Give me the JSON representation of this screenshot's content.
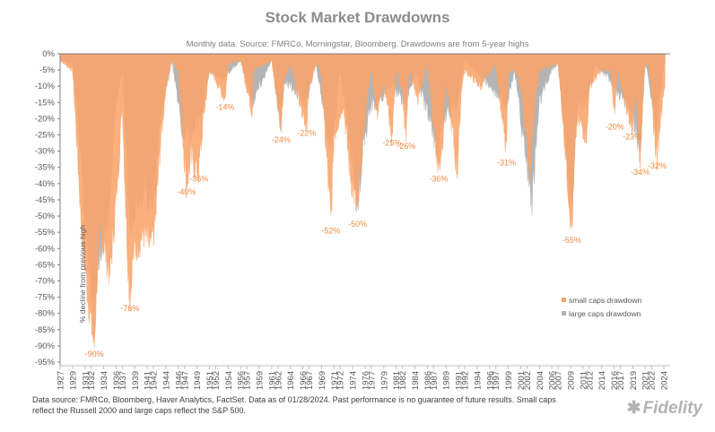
{
  "chart_data": {
    "type": "area",
    "title": "Stock Market Drawdowns",
    "subtitle": "Monthly data.  Source: FMRCo, Morningstar, Bloomberg.  Drawdowns are from 5-year highs",
    "ylabel": "% decline from previous high",
    "ylim": [
      -95,
      0
    ],
    "yticks": [
      "0%",
      "-5%",
      "-10%",
      "-15%",
      "-20%",
      "-25%",
      "-30%",
      "-35%",
      "-40%",
      "-45%",
      "-50%",
      "-55%",
      "-60%",
      "-65%",
      "-70%",
      "-75%",
      "-80%",
      "-85%",
      "-90%",
      "-95%"
    ],
    "xlim": [
      1927,
      2025
    ],
    "xticks": [
      "1927",
      "1929",
      "1931",
      "1932",
      "1934",
      "1936",
      "1937",
      "1939",
      "1941",
      "1942",
      "1944",
      "1946",
      "1947",
      "1949",
      "1951",
      "1952",
      "1954",
      "1956",
      "1957",
      "1959",
      "1961",
      "1962",
      "1964",
      "1966",
      "1967",
      "1969",
      "1971",
      "1972",
      "1974",
      "1976",
      "1977",
      "1979",
      "1981",
      "1982",
      "1984",
      "1986",
      "1987",
      "1989",
      "1991",
      "1992",
      "1994",
      "1996",
      "1997",
      "1999",
      "2001",
      "2002",
      "2004",
      "2006",
      "2007",
      "2009",
      "2011",
      "2012",
      "2014",
      "2016",
      "2017",
      "2019",
      "2021",
      "2022",
      "2024"
    ],
    "legend": {
      "position": "right",
      "entries": [
        "small caps drawdown",
        "large caps drawdown"
      ]
    },
    "series": [
      {
        "name": "small caps drawdown",
        "color": "#f9a46a",
        "points": [
          [
            1927,
            -2
          ],
          [
            1929,
            -5
          ],
          [
            1929.8,
            -30
          ],
          [
            1930.5,
            -55
          ],
          [
            1931.5,
            -75
          ],
          [
            1932.3,
            -88
          ],
          [
            1932.5,
            -90
          ],
          [
            1932.9,
            -70
          ],
          [
            1933.5,
            -55
          ],
          [
            1934.2,
            -60
          ],
          [
            1935,
            -68
          ],
          [
            1936,
            -45
          ],
          [
            1937,
            -15
          ],
          [
            1937.7,
            -55
          ],
          [
            1938.2,
            -76
          ],
          [
            1938.7,
            -62
          ],
          [
            1939.5,
            -58
          ],
          [
            1940.5,
            -55
          ],
          [
            1941.5,
            -60
          ],
          [
            1942.3,
            -52
          ],
          [
            1943,
            -30
          ],
          [
            1944,
            -10
          ],
          [
            1945,
            -2
          ],
          [
            1946,
            -5
          ],
          [
            1946.7,
            -25
          ],
          [
            1947.3,
            -40
          ],
          [
            1948,
            -32
          ],
          [
            1949.3,
            -36
          ],
          [
            1950,
            -20
          ],
          [
            1951,
            -5
          ],
          [
            1952,
            -8
          ],
          [
            1953.5,
            -14
          ],
          [
            1954,
            -3
          ],
          [
            1956,
            -2
          ],
          [
            1957.9,
            -18
          ],
          [
            1958,
            -5
          ],
          [
            1961,
            -2
          ],
          [
            1962.5,
            -24
          ],
          [
            1963,
            -8
          ],
          [
            1964,
            -3
          ],
          [
            1966.6,
            -22
          ],
          [
            1967,
            -10
          ],
          [
            1968.5,
            -2
          ],
          [
            1969,
            -8
          ],
          [
            1970.5,
            -52
          ],
          [
            1971,
            -25
          ],
          [
            1972.5,
            -15
          ],
          [
            1973.5,
            -35
          ],
          [
            1974.8,
            -50
          ],
          [
            1975.5,
            -30
          ],
          [
            1976.5,
            -10
          ],
          [
            1977,
            -5
          ],
          [
            1978,
            -18
          ],
          [
            1979,
            -8
          ],
          [
            1980.3,
            -25
          ],
          [
            1981,
            -5
          ],
          [
            1982,
            -12
          ],
          [
            1982.6,
            -26
          ],
          [
            1983,
            -5
          ],
          [
            1984.5,
            -14
          ],
          [
            1986,
            -3
          ],
          [
            1987.8,
            -36
          ],
          [
            1988.5,
            -25
          ],
          [
            1989,
            -8
          ],
          [
            1990.8,
            -36
          ],
          [
            1991.5,
            -10
          ],
          [
            1992,
            -5
          ],
          [
            1994.5,
            -10
          ],
          [
            1997,
            -3
          ],
          [
            1998.7,
            -31
          ],
          [
            1999,
            -5
          ],
          [
            2000,
            -5
          ],
          [
            2001,
            -10
          ],
          [
            2002.5,
            -35
          ],
          [
            2003,
            -20
          ],
          [
            2004,
            -5
          ],
          [
            2007,
            -3
          ],
          [
            2008,
            -25
          ],
          [
            2009.2,
            -55
          ],
          [
            2010,
            -20
          ],
          [
            2011.7,
            -25
          ],
          [
            2012,
            -10
          ],
          [
            2014,
            -5
          ],
          [
            2015.5,
            -5
          ],
          [
            2016.1,
            -20
          ],
          [
            2016.5,
            -5
          ],
          [
            2018.9,
            -23
          ],
          [
            2019.5,
            -10
          ],
          [
            2020.2,
            -34
          ],
          [
            2020.8,
            -5
          ],
          [
            2021.5,
            -2
          ],
          [
            2022.5,
            -25
          ],
          [
            2022.9,
            -32
          ],
          [
            2023.5,
            -18
          ],
          [
            2024,
            -10
          ]
        ]
      },
      {
        "name": "large caps drawdown",
        "color": "#b4b4b4",
        "points": [
          [
            1927,
            -2
          ],
          [
            1929,
            -3
          ],
          [
            1929.9,
            -20
          ],
          [
            1930.5,
            -40
          ],
          [
            1931.5,
            -60
          ],
          [
            1932.4,
            -85
          ],
          [
            1933,
            -62
          ],
          [
            1934,
            -60
          ],
          [
            1935,
            -45
          ],
          [
            1936,
            -15
          ],
          [
            1937,
            -5
          ],
          [
            1938.2,
            -55
          ],
          [
            1939,
            -45
          ],
          [
            1940.5,
            -40
          ],
          [
            1941.5,
            -45
          ],
          [
            1942.3,
            -40
          ],
          [
            1943,
            -20
          ],
          [
            1945,
            -2
          ],
          [
            1946.7,
            -25
          ],
          [
            1947,
            -25
          ],
          [
            1948,
            -25
          ],
          [
            1949.5,
            -20
          ],
          [
            1951,
            -5
          ],
          [
            1953,
            -8
          ],
          [
            1956,
            -2
          ],
          [
            1957.9,
            -15
          ],
          [
            1961,
            -2
          ],
          [
            1962.5,
            -22
          ],
          [
            1963,
            -8
          ],
          [
            1966.6,
            -15
          ],
          [
            1968,
            -2
          ],
          [
            1970.5,
            -30
          ],
          [
            1972,
            -5
          ],
          [
            1974.8,
            -45
          ],
          [
            1975.5,
            -30
          ],
          [
            1976.5,
            -20
          ],
          [
            1977,
            -15
          ],
          [
            1978,
            -15
          ],
          [
            1980.3,
            -10
          ],
          [
            1982.6,
            -15
          ],
          [
            1984,
            -5
          ],
          [
            1987.8,
            -30
          ],
          [
            1988.5,
            -20
          ],
          [
            1990.8,
            -15
          ],
          [
            1992,
            -2
          ],
          [
            1998.7,
            -15
          ],
          [
            2000,
            -5
          ],
          [
            2001,
            -20
          ],
          [
            2002.8,
            -45
          ],
          [
            2003,
            -40
          ],
          [
            2004,
            -15
          ],
          [
            2006,
            -5
          ],
          [
            2007,
            -3
          ],
          [
            2009.2,
            -50
          ],
          [
            2010,
            -15
          ],
          [
            2011.7,
            -15
          ],
          [
            2013,
            -3
          ],
          [
            2016.1,
            -10
          ],
          [
            2018.9,
            -18
          ],
          [
            2020.2,
            -30
          ],
          [
            2021,
            -2
          ],
          [
            2022.8,
            -23
          ],
          [
            2023.5,
            -10
          ],
          [
            2024,
            -3
          ]
        ]
      }
    ],
    "annotations": [
      {
        "text": "-90%",
        "x": 1932.5,
        "y": -90
      },
      {
        "text": "-76%",
        "x": 1938.2,
        "y": -76
      },
      {
        "text": "-40%",
        "x": 1947.3,
        "y": -40
      },
      {
        "text": "-36%",
        "x": 1949.3,
        "y": -36
      },
      {
        "text": "-14%",
        "x": 1953.5,
        "y": -14
      },
      {
        "text": "-24%",
        "x": 1962.5,
        "y": -24
      },
      {
        "text": "-22%",
        "x": 1966.6,
        "y": -22
      },
      {
        "text": "-52%",
        "x": 1970.5,
        "y": -52
      },
      {
        "text": "-50%",
        "x": 1974.8,
        "y": -50
      },
      {
        "text": "-25%",
        "x": 1980.3,
        "y": -25
      },
      {
        "text": "-26%",
        "x": 1982.6,
        "y": -26
      },
      {
        "text": "-36%",
        "x": 1987.8,
        "y": -36
      },
      {
        "text": "-31%",
        "x": 1998.7,
        "y": -31
      },
      {
        "text": "-55%",
        "x": 2009.2,
        "y": -55
      },
      {
        "text": "-20%",
        "x": 2016.1,
        "y": -20
      },
      {
        "text": "-23%",
        "x": 2018.9,
        "y": -23
      },
      {
        "text": "-34%",
        "x": 2020.2,
        "y": -34
      },
      {
        "text": "-32%",
        "x": 2022.9,
        "y": -32
      }
    ],
    "annotation_color": "#f28a3f",
    "grid": false
  },
  "footnote": "Data source: FMRCo, Bloomberg, Haver Analytics, FactSet. Data as of 01/28/2024. Past performance is no guarantee of future results. Small caps reflect the Russell 2000 and large caps reflect the S&P 500.",
  "logo": "Fidelity"
}
